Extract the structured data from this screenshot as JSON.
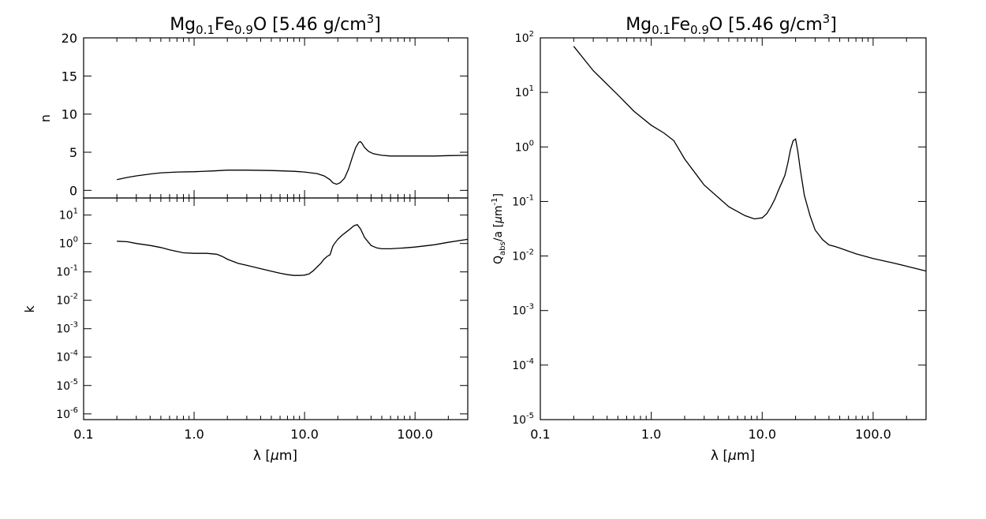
{
  "chart_data": [
    {
      "type": "line",
      "title_parts": [
        "Mg",
        "0.1",
        "Fe",
        "0.9",
        "O [5.46 g/cm",
        "3",
        "]"
      ],
      "xlabel_parts": [
        "λ [",
        "μ",
        "m]"
      ],
      "xscale": "log",
      "xlim": [
        0.1,
        300
      ],
      "x_tick_labels": [
        "0.1",
        "1.0",
        "10.0",
        "100.0"
      ],
      "panels": [
        {
          "id": "n",
          "ylabel": "n",
          "yscale": "linear",
          "ylim": [
            -1,
            20
          ],
          "y_ticks": [
            0,
            5,
            10,
            15,
            20
          ],
          "y_tick_labels": [
            "0",
            "5",
            "10",
            "15",
            "20"
          ],
          "series": [
            {
              "x": [
                0.2,
                0.25,
                0.3,
                0.4,
                0.5,
                0.7,
                1.0,
                1.5,
                2.0,
                3.0,
                5.0,
                8.0,
                10.0,
                13.0,
                15.0,
                17.0,
                18.0,
                19.5,
                21.0,
                23.0,
                25.0,
                27.0,
                29.0,
                31.0,
                32.0,
                33.0,
                35.0,
                38.0,
                42.0,
                50.0,
                60.0,
                80.0,
                100.0,
                150.0,
                200.0,
                300.0
              ],
              "y": [
                1.4,
                1.7,
                1.9,
                2.15,
                2.3,
                2.4,
                2.45,
                2.55,
                2.65,
                2.65,
                2.6,
                2.5,
                2.4,
                2.2,
                1.9,
                1.4,
                1.0,
                0.8,
                1.0,
                1.6,
                2.8,
                4.3,
                5.6,
                6.3,
                6.4,
                6.2,
                5.6,
                5.1,
                4.8,
                4.6,
                4.5,
                4.5,
                4.5,
                4.5,
                4.55,
                4.6
              ]
            }
          ]
        },
        {
          "id": "k",
          "ylabel": "k",
          "yscale": "log",
          "ylim": [
            6.3e-07,
            40
          ],
          "y_ticks": [
            1e-06,
            1e-05,
            0.0001,
            0.001,
            0.01,
            0.1,
            1,
            10
          ],
          "y_tick_labels": [
            {
              "base": "10",
              "exp": "-6"
            },
            {
              "base": "10",
              "exp": "-5"
            },
            {
              "base": "10",
              "exp": "-4"
            },
            {
              "base": "10",
              "exp": "-3"
            },
            {
              "base": "10",
              "exp": "-2"
            },
            {
              "base": "10",
              "exp": "-1"
            },
            {
              "base": "10",
              "exp": "0"
            },
            {
              "base": "10",
              "exp": "1"
            }
          ],
          "series": [
            {
              "x": [
                0.2,
                0.25,
                0.3,
                0.4,
                0.5,
                0.6,
                0.8,
                1.0,
                1.3,
                1.6,
                1.8,
                2.0,
                2.5,
                3.0,
                4.0,
                5.0,
                6.0,
                7.0,
                8.0,
                9.0,
                10.0,
                11.0,
                12.0,
                13.0,
                14.0,
                15.0,
                16.0,
                17.0,
                18.0,
                19.0,
                20.0,
                22.0,
                24.0,
                26.0,
                28.0,
                30.0,
                32.0,
                35.0,
                40.0,
                45.0,
                50.0,
                60.0,
                80.0,
                100.0,
                150.0,
                200.0,
                300.0
              ],
              "y": [
                1.2,
                1.15,
                1.0,
                0.85,
                0.72,
                0.6,
                0.47,
                0.45,
                0.45,
                0.42,
                0.35,
                0.28,
                0.2,
                0.17,
                0.13,
                0.105,
                0.09,
                0.08,
                0.075,
                0.075,
                0.077,
                0.085,
                0.11,
                0.15,
                0.2,
                0.28,
                0.35,
                0.4,
                0.8,
                1.1,
                1.4,
                2.0,
                2.6,
                3.3,
                4.2,
                4.6,
                3.3,
                1.6,
                0.85,
                0.7,
                0.65,
                0.65,
                0.7,
                0.75,
                0.9,
                1.1,
                1.4
              ]
            }
          ]
        }
      ]
    },
    {
      "type": "line",
      "title_parts": [
        "Mg",
        "0.1",
        "Fe",
        "0.9",
        "O [5.46 g/cm",
        "3",
        "]"
      ],
      "xlabel_parts": [
        "λ [",
        "μ",
        "m]"
      ],
      "ylabel_parts": [
        "Q",
        "abs",
        "/a [",
        "μ",
        "m",
        "-1",
        "]"
      ],
      "xscale": "log",
      "yscale": "log",
      "xlim": [
        0.1,
        300
      ],
      "ylim": [
        1e-05,
        100
      ],
      "x_tick_labels": [
        "0.1",
        "1.0",
        "10.0",
        "100.0"
      ],
      "y_ticks": [
        1e-05,
        0.0001,
        0.001,
        0.01,
        0.1,
        1,
        10,
        100
      ],
      "y_tick_labels": [
        {
          "base": "10",
          "exp": "-5"
        },
        {
          "base": "10",
          "exp": "-4"
        },
        {
          "base": "10",
          "exp": "-3"
        },
        {
          "base": "10",
          "exp": "-2"
        },
        {
          "base": "10",
          "exp": "-1"
        },
        {
          "base": "10",
          "exp": "0"
        },
        {
          "base": "10",
          "exp": "1"
        },
        {
          "base": "10",
          "exp": "2"
        }
      ],
      "series": [
        {
          "x": [
            0.2,
            0.3,
            0.5,
            0.7,
            1.0,
            1.3,
            1.6,
            2.0,
            3.0,
            5.0,
            7.0,
            8.5,
            10.0,
            11.0,
            12.0,
            13.0,
            14.0,
            15.0,
            16.0,
            17.0,
            18.0,
            19.0,
            20.0,
            21.0,
            22.0,
            24.0,
            27.0,
            30.0,
            35.0,
            40.0,
            45.0,
            50.0,
            70.0,
            100.0,
            150.0,
            200.0,
            300.0
          ],
          "y": [
            70,
            25,
            9,
            4.5,
            2.5,
            1.8,
            1.3,
            0.6,
            0.2,
            0.08,
            0.055,
            0.048,
            0.05,
            0.06,
            0.08,
            0.11,
            0.16,
            0.22,
            0.3,
            0.5,
            0.9,
            1.3,
            1.4,
            0.8,
            0.4,
            0.13,
            0.055,
            0.03,
            0.02,
            0.016,
            0.015,
            0.014,
            0.011,
            0.009,
            0.0075,
            0.0065,
            0.0053
          ]
        }
      ]
    }
  ]
}
